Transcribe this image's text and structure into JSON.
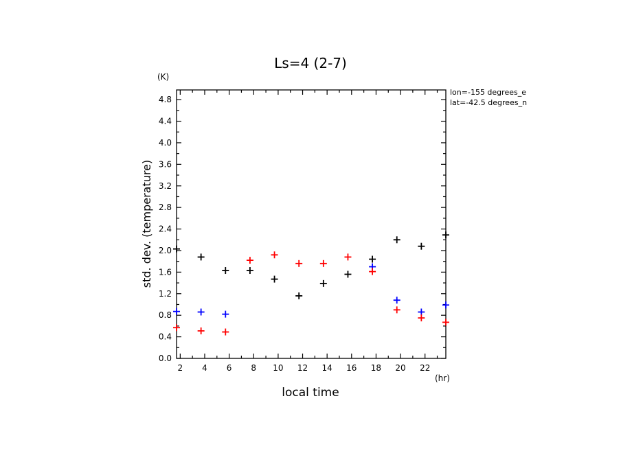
{
  "chart_data": {
    "type": "scatter",
    "title": "Ls=4 (2-7)",
    "xlabel": "local time",
    "ylabel": "std. dev. (temperature)",
    "x_unit": "(hr)",
    "y_unit": "(K)",
    "xlim": [
      1.7,
      23.7
    ],
    "ylim": [
      0.0,
      4.98
    ],
    "x_ticks": [
      "2",
      "4",
      "6",
      "8",
      "10",
      "12",
      "14",
      "16",
      "18",
      "20",
      "22"
    ],
    "y_ticks": [
      "0.0",
      "0.4",
      "0.8",
      "1.2",
      "1.6",
      "2.0",
      "2.4",
      "2.8",
      "3.2",
      "3.6",
      "4.0",
      "4.4",
      "4.8"
    ],
    "annotations": [
      "lon=-155 degrees_e",
      "lat=-42.5 degrees_n"
    ],
    "marker": "plus",
    "series": [
      {
        "color": "#000000",
        "points": [
          [
            1.7,
            2.03
          ],
          [
            3.7,
            1.88
          ],
          [
            5.7,
            1.63
          ],
          [
            7.7,
            1.63
          ],
          [
            9.7,
            1.47
          ],
          [
            11.7,
            1.16
          ],
          [
            13.7,
            1.39
          ],
          [
            15.7,
            1.56
          ],
          [
            17.7,
            1.84
          ],
          [
            19.7,
            2.2
          ],
          [
            21.7,
            2.08
          ],
          [
            23.7,
            2.29
          ]
        ]
      },
      {
        "color": "#0000ff",
        "points": [
          [
            1.7,
            0.87
          ],
          [
            3.7,
            0.86
          ],
          [
            5.7,
            0.82
          ],
          [
            17.7,
            1.7
          ],
          [
            19.7,
            1.08
          ],
          [
            21.7,
            0.86
          ],
          [
            23.7,
            0.99
          ]
        ]
      },
      {
        "color": "#ff0000",
        "points": [
          [
            1.7,
            0.57
          ],
          [
            3.7,
            0.51
          ],
          [
            5.7,
            0.49
          ],
          [
            7.7,
            1.82
          ],
          [
            9.7,
            1.92
          ],
          [
            11.7,
            1.76
          ],
          [
            13.7,
            1.76
          ],
          [
            15.7,
            1.88
          ],
          [
            17.7,
            1.61
          ],
          [
            19.7,
            0.9
          ],
          [
            21.7,
            0.75
          ],
          [
            23.7,
            0.67
          ]
        ]
      }
    ]
  }
}
